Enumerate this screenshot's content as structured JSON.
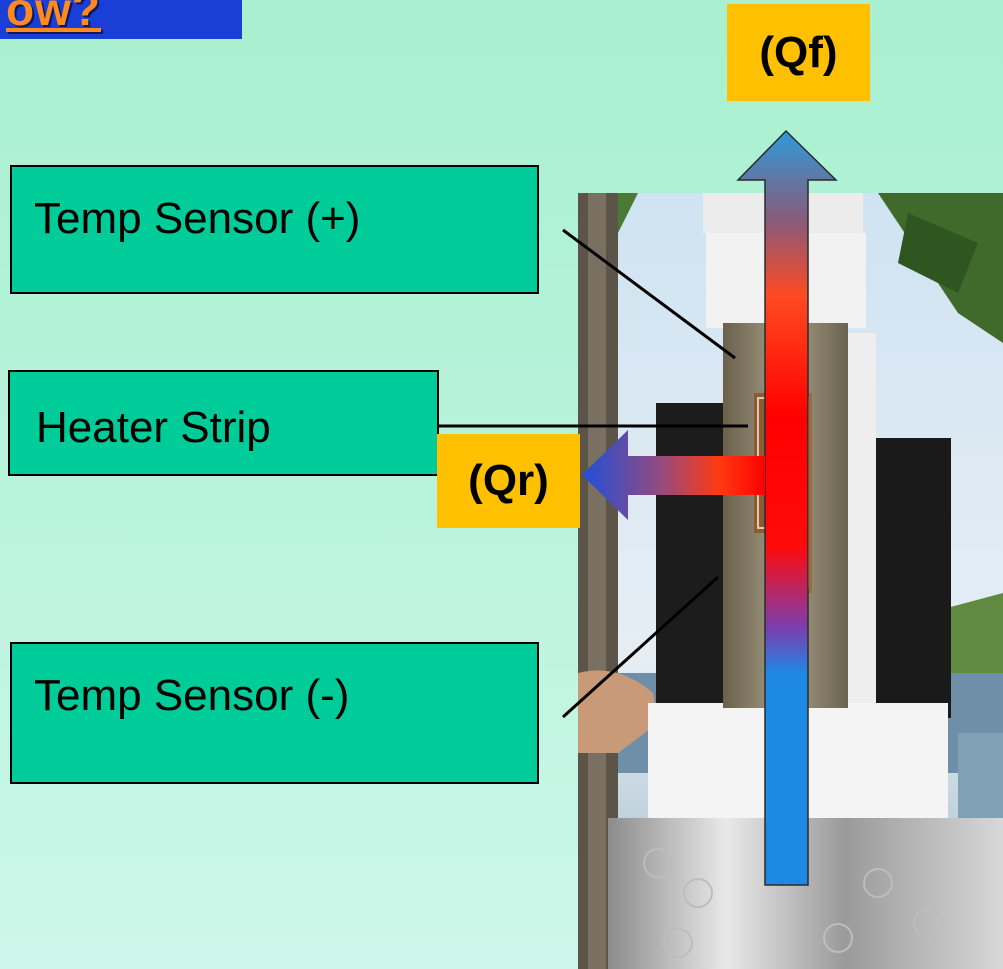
{
  "title": {
    "text": "ow?"
  },
  "labels": {
    "temp_sensor_plus": "Temp Sensor (+)",
    "heater_strip": "Heater Strip",
    "temp_sensor_minus": "Temp Sensor (-)"
  },
  "flows": {
    "qf": "(Qf)",
    "qr": "(Qr)"
  },
  "colors": {
    "background": "#b9f3dc",
    "label_fill": "#00cc99",
    "flow_label_fill": "#ffc000",
    "title_bar": "#1a3fd6",
    "title_text": "#ff8a1f",
    "arrow_hot": "#ff0000",
    "arrow_cold": "#1e88e5"
  }
}
